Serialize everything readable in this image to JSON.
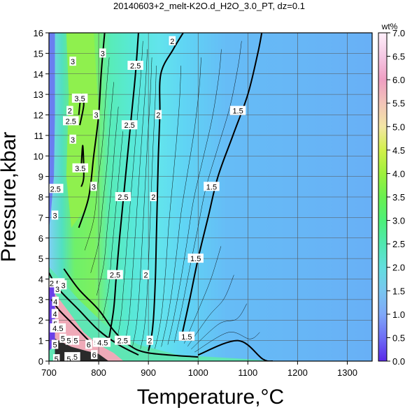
{
  "chart_data": {
    "type": "heatmap",
    "title": "20140603+2_melt-K2O.d_H2O_3.0_PT, dz=0.1",
    "xlabel": "Temperature,°C",
    "ylabel": "Pressure,kbar",
    "xlim": [
      700,
      1350
    ],
    "ylim": [
      0,
      16
    ],
    "x_ticks": [
      700,
      800,
      900,
      1000,
      1100,
      1200,
      1300
    ],
    "y_ticks": [
      0,
      1,
      2,
      3,
      4,
      5,
      6,
      7,
      8,
      9,
      10,
      11,
      12,
      13,
      14,
      15,
      16
    ],
    "grid": true,
    "colorbar": {
      "label": "wt%",
      "range": [
        0.0,
        7.0
      ],
      "ticks": [
        "0.0",
        "0.5",
        "1.0",
        "1.5",
        "2.0",
        "2.5",
        "3.0",
        "3.5",
        "4.0",
        "4.5",
        "5.0",
        "5.5",
        "6.0",
        "6.5",
        "7.0"
      ],
      "colors": [
        "#5a28e8",
        "#6e6ef5",
        "#7fa8f8",
        "#78c6f0",
        "#62dede",
        "#50e8b0",
        "#4cf078",
        "#6af050",
        "#9ef03c",
        "#d2f04a",
        "#f3e6a4",
        "#f2c4b8",
        "#ef9ec2",
        "#f5c8e4",
        "#fff0fa"
      ]
    },
    "contours": [
      {
        "level": "1.5",
        "points": [
          [
            1000,
            0.3
          ],
          [
            1080,
            1.0
          ],
          [
            1130,
            0.1
          ],
          [
            1150,
            0.0
          ]
        ]
      },
      {
        "level": "1.5",
        "points": [
          [
            965,
            1.0
          ],
          [
            983,
            3.0
          ],
          [
            1000,
            5.0
          ],
          [
            1020,
            7.0
          ],
          [
            1040,
            9.0
          ],
          [
            1070,
            11.0
          ],
          [
            1100,
            13.0
          ],
          [
            1120,
            15.0
          ],
          [
            1128,
            16.0
          ]
        ]
      },
      {
        "level": "2",
        "points": [
          [
            900,
            0.5
          ],
          [
            905,
            1.0
          ],
          [
            910,
            2.0
          ],
          [
            914,
            4.0
          ],
          [
            916,
            6.0
          ],
          [
            918,
            8.0
          ],
          [
            920,
            10.0
          ],
          [
            923,
            12.0
          ],
          [
            925,
            14.0
          ],
          [
            950,
            15.2
          ],
          [
            970,
            16.0
          ]
        ]
      },
      {
        "level": "2.5",
        "points": [
          [
            820,
            1.0
          ],
          [
            830,
            2.5
          ],
          [
            835,
            4.0
          ],
          [
            842,
            6.0
          ],
          [
            850,
            8.0
          ],
          [
            858,
            10.0
          ],
          [
            866,
            12.0
          ],
          [
            874,
            14.0
          ],
          [
            880,
            16.0
          ]
        ]
      },
      {
        "level": "3",
        "points": [
          [
            760,
            6.5
          ],
          [
            780,
            8.0
          ],
          [
            790,
            10.0
          ],
          [
            800,
            12.0
          ],
          [
            805,
            14.0
          ],
          [
            812,
            16.0
          ]
        ]
      },
      {
        "level": "3.5",
        "points": [
          [
            765,
            9.5
          ],
          [
            768,
            10.5
          ],
          [
            770,
            9.0
          ],
          [
            765,
            8.5
          ]
        ]
      },
      {
        "level": "3.5",
        "points": [
          [
            760,
            12.0
          ],
          [
            765,
            13.0
          ],
          [
            770,
            12.5
          ],
          [
            762,
            11.5
          ]
        ]
      },
      {
        "level": "2.5",
        "points": [
          [
            700,
            4.3
          ],
          [
            720,
            3.5
          ],
          [
            760,
            2.5
          ],
          [
            800,
            1.5
          ],
          [
            840,
            0.8
          ],
          [
            880,
            0.3
          ]
        ]
      },
      {
        "level": "2",
        "points": [
          [
            730,
            4.5
          ],
          [
            760,
            3.5
          ],
          [
            800,
            2.5
          ],
          [
            830,
            1.5
          ],
          [
            860,
            0.8
          ],
          [
            900,
            0.4
          ],
          [
            1000,
            0.2
          ]
        ]
      },
      {
        "level": "4",
        "points": [
          [
            705,
            3.0
          ],
          [
            720,
            2.5
          ],
          [
            740,
            2.0
          ],
          [
            760,
            1.5
          ],
          [
            780,
            1.0
          ]
        ]
      }
    ],
    "contour_labels": [
      {
        "text": "1.5",
        "x": 1080,
        "y": 12.2
      },
      {
        "text": "1.5",
        "x": 1027,
        "y": 8.5
      },
      {
        "text": "1.5",
        "x": 995,
        "y": 5.0
      },
      {
        "text": "1.5",
        "x": 977,
        "y": 1.2
      },
      {
        "text": "2",
        "x": 948,
        "y": 15.6
      },
      {
        "text": "2",
        "x": 920,
        "y": 12.0
      },
      {
        "text": "2",
        "x": 910,
        "y": 8.0
      },
      {
        "text": "2",
        "x": 895,
        "y": 4.2
      },
      {
        "text": "2",
        "x": 903,
        "y": 1.0
      },
      {
        "text": "2.5",
        "x": 874,
        "y": 14.4
      },
      {
        "text": "2.5",
        "x": 862,
        "y": 11.5
      },
      {
        "text": "2.5",
        "x": 849,
        "y": 8.0
      },
      {
        "text": "2.5",
        "x": 833,
        "y": 4.2
      },
      {
        "text": "2.5",
        "x": 848,
        "y": 1.0
      },
      {
        "text": "3",
        "x": 808,
        "y": 15.0
      },
      {
        "text": "3",
        "x": 795,
        "y": 12.0
      },
      {
        "text": "3",
        "x": 790,
        "y": 8.5
      },
      {
        "text": "3",
        "x": 748,
        "y": 14.6
      },
      {
        "text": "3",
        "x": 748,
        "y": 10.8
      },
      {
        "text": "3",
        "x": 712,
        "y": 7.1
      },
      {
        "text": "2",
        "x": 742,
        "y": 12.2
      },
      {
        "text": "2.5",
        "x": 744,
        "y": 11.7
      },
      {
        "text": "3.5",
        "x": 762,
        "y": 12.8
      },
      {
        "text": "3.5",
        "x": 763,
        "y": 9.4
      },
      {
        "text": "2.5",
        "x": 713,
        "y": 8.4
      },
      {
        "text": "2.5",
        "x": 712,
        "y": 3.8
      },
      {
        "text": "3",
        "x": 725,
        "y": 3.8
      },
      {
        "text": "3",
        "x": 729,
        "y": 3.7
      },
      {
        "text": "3",
        "x": 717,
        "y": 3.5
      },
      {
        "text": "4",
        "x": 713,
        "y": 2.9
      },
      {
        "text": "4",
        "x": 712,
        "y": 2.3
      },
      {
        "text": "5",
        "x": 713,
        "y": 1.8
      },
      {
        "text": "4.5",
        "x": 718,
        "y": 1.6
      },
      {
        "text": "5",
        "x": 728,
        "y": 1.1
      },
      {
        "text": "5",
        "x": 740,
        "y": 1.0
      },
      {
        "text": "5",
        "x": 754,
        "y": 1.0
      },
      {
        "text": "5",
        "x": 712,
        "y": 0.8
      },
      {
        "text": "6",
        "x": 780,
        "y": 0.8
      },
      {
        "text": "6",
        "x": 791,
        "y": 0.3
      },
      {
        "text": "5",
        "x": 795,
        "y": 0.9
      },
      {
        "text": "4.5",
        "x": 808,
        "y": 0.9
      },
      {
        "text": "4.5",
        "x": 747,
        "y": 0.2
      },
      {
        "text": "5",
        "x": 740,
        "y": 0.1
      },
      {
        "text": "5",
        "x": 715,
        "y": 0.1
      }
    ]
  }
}
